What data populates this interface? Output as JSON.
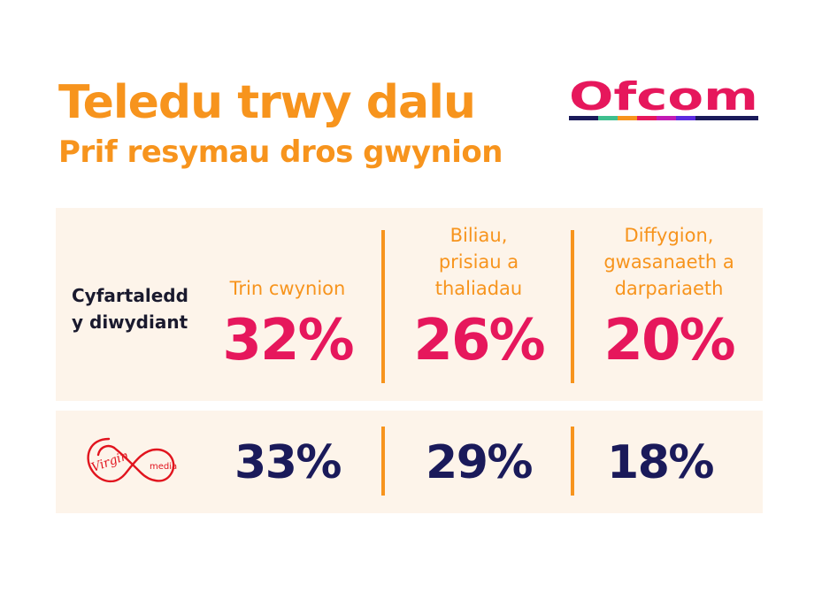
{
  "header": {
    "title": "Teledu trwy dalu",
    "subtitle": "Prif resymau dros gwynion",
    "logo_text": "Ofcom"
  },
  "average": {
    "label_line1": "Cyfartaledd",
    "label_line2": "y diwydiant",
    "categories": [
      {
        "lines": [
          "Trin cwynion"
        ],
        "value": "32%"
      },
      {
        "lines": [
          "Biliau,",
          "prisiau a",
          "thaliadau"
        ],
        "value": "26%"
      },
      {
        "lines": [
          "Diffygion,",
          "gwasanaeth a",
          "darpariaeth"
        ],
        "value": "20%"
      }
    ]
  },
  "virgin": {
    "logo_word1": "Virgin",
    "logo_word2": "media",
    "values": [
      "33%",
      "29%",
      "18%"
    ]
  },
  "colors": {
    "orange": "#F7941D",
    "pink": "#E6175C",
    "navy": "#1a1a5a",
    "panel": "#FDF4EA",
    "virgin_red": "#E1141E"
  }
}
